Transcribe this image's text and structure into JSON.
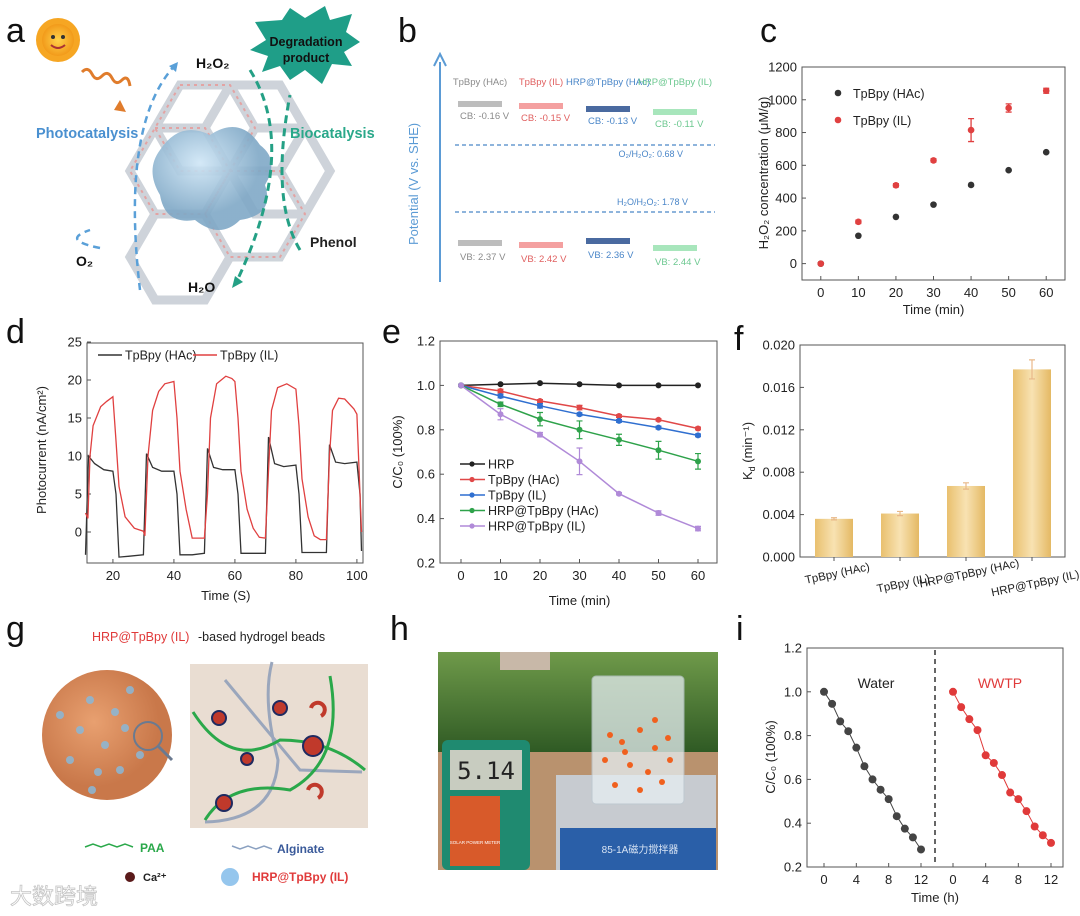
{
  "panels": {
    "a": {
      "label": "a",
      "sun": "sun-icon",
      "h2o2": "H₂O₂",
      "o2": "O₂",
      "h2o": "H₂O",
      "phenol": "Phenol",
      "photo": "Photocatalysis",
      "bio": "Biocatalysis",
      "burst_line1": "Degradation",
      "burst_line2": "product",
      "colors": {
        "photo": "#5aa0d8",
        "bio": "#24a085",
        "burst": "#1f9e88"
      }
    },
    "b": {
      "label": "b",
      "ylabel": "Potential (V vs. SHE)",
      "materials": [
        {
          "name": "TpBpy (HAc)",
          "cb": "CB: -0.16 V",
          "vb": "VB: 2.37 V",
          "color": "#8a8a8a",
          "bar": "#bdbdbd"
        },
        {
          "name": "TpBpy (IL)",
          "cb": "CB: -0.15 V",
          "vb": "VB: 2.42 V",
          "color": "#e06060",
          "bar": "#f4a0a0"
        },
        {
          "name": "HRP@TpBpy (HAc)",
          "cb": "CB: -0.13 V",
          "vb": "VB: 2.36 V",
          "color": "#4a86c8",
          "bar": "#4a6aa0"
        },
        {
          "name": "HRP@TpBpy (IL)",
          "cb": "CB: -0.11 V",
          "vb": "VB: 2.44 V",
          "color": "#6cc890",
          "bar": "#a8e6bc"
        }
      ],
      "o2_line": "O₂/H₂O₂: 0.68  V",
      "h2o_line": "H₂O/H₂O₂: 1.78  V"
    },
    "c": {
      "label": "c"
    },
    "d": {
      "label": "d"
    },
    "e": {
      "label": "e"
    },
    "f": {
      "label": "f"
    },
    "g": {
      "label": "g",
      "title_red": "HRP@TpBpy (IL)",
      "title_rest": "-based hydrogel beads",
      "paa": "PAA",
      "alginate": "Alginate",
      "ca": "Ca²⁺",
      "hrp": "HRP@TpBpy (IL)"
    },
    "h": {
      "label": "h",
      "meter_reading": "5.14",
      "meter_brand": "SOLAR POWER METER",
      "stirrer": "85-1A磁力搅拌器"
    },
    "i": {
      "label": "i"
    }
  },
  "watermark": "大数跨境",
  "chart_data": [
    {
      "id": "c",
      "type": "scatter",
      "title": "",
      "xlabel": "Time (min)",
      "ylabel": "H₂O₂ concentration (μM/g)",
      "xlim": [
        -5,
        65
      ],
      "ylim": [
        -100,
        1200
      ],
      "xticks": [
        0,
        10,
        20,
        30,
        40,
        50,
        60
      ],
      "yticks": [
        0,
        200,
        400,
        600,
        800,
        1000,
        1200
      ],
      "legend": "top-left",
      "x": [
        0,
        10,
        20,
        30,
        40,
        50,
        60
      ],
      "series": [
        {
          "name": "TpBpy (HAc)",
          "color": "#333333",
          "values": [
            0,
            170,
            285,
            360,
            480,
            570,
            680
          ]
        },
        {
          "name": "TpBpy (IL)",
          "color": "#e04040",
          "values": [
            0,
            255,
            478,
            630,
            815,
            950,
            1055
          ],
          "errors": [
            0,
            10,
            10,
            10,
            70,
            25,
            15
          ]
        }
      ]
    },
    {
      "id": "d",
      "type": "line",
      "xlabel": "Time (S)",
      "ylabel": "Photocurrent (nA/cm²)",
      "xlim": [
        11,
        102
      ],
      "ylim": [
        -4,
        25
      ],
      "xticks": [
        20,
        40,
        60,
        80,
        100
      ],
      "yticks": [
        0,
        5,
        10,
        15,
        20,
        25
      ],
      "legend": "top",
      "series": [
        {
          "name": "TpBpy (HAc)",
          "color": "#333333",
          "points": [
            [
              11,
              -3
            ],
            [
              12,
              10
            ],
            [
              14,
              9
            ],
            [
              17,
              8.2
            ],
            [
              20,
              8
            ],
            [
              21,
              5
            ],
            [
              22,
              -3.3
            ],
            [
              25,
              -3.2
            ],
            [
              30,
              -3
            ],
            [
              31,
              10.3
            ],
            [
              33,
              8.5
            ],
            [
              36,
              8
            ],
            [
              40,
              8
            ],
            [
              41,
              5
            ],
            [
              42,
              -3
            ],
            [
              46,
              -3
            ],
            [
              50,
              -2.8
            ],
            [
              51,
              11
            ],
            [
              53,
              8.5
            ],
            [
              56,
              8.2
            ],
            [
              60,
              8.2
            ],
            [
              61,
              5
            ],
            [
              62,
              -2.8
            ],
            [
              66,
              -2.8
            ],
            [
              70,
              -2.8
            ],
            [
              71,
              12.5
            ],
            [
              73,
              9
            ],
            [
              76,
              8.6
            ],
            [
              80,
              8.8
            ],
            [
              81,
              5
            ],
            [
              82,
              -2.7
            ],
            [
              90,
              -2.7
            ],
            [
              91,
              11.5
            ],
            [
              93,
              9.2
            ],
            [
              96,
              9
            ],
            [
              100,
              9.2
            ],
            [
              101,
              5
            ],
            [
              101.5,
              -2.5
            ]
          ]
        },
        {
          "name": "TpBpy (IL)",
          "color": "#e04040",
          "points": [
            [
              11,
              2.5
            ],
            [
              11.8,
              1.8
            ],
            [
              12.5,
              10
            ],
            [
              13.5,
              14
            ],
            [
              16,
              16.5
            ],
            [
              18,
              17.2
            ],
            [
              20,
              17.8
            ],
            [
              21,
              12
            ],
            [
              22,
              6
            ],
            [
              24,
              2
            ],
            [
              27,
              0.5
            ],
            [
              30,
              0.1
            ],
            [
              30.5,
              -0.5
            ],
            [
              31.5,
              10
            ],
            [
              33,
              16
            ],
            [
              35,
              18.5
            ],
            [
              37,
              19.5
            ],
            [
              40,
              19.8
            ],
            [
              41,
              15
            ],
            [
              42,
              8
            ],
            [
              44,
              3
            ],
            [
              46,
              -0.8
            ],
            [
              50,
              -0.8
            ],
            [
              51,
              5
            ],
            [
              52,
              15
            ],
            [
              54,
              19.5
            ],
            [
              57,
              20.5
            ],
            [
              59,
              20.2
            ],
            [
              60,
              19.8
            ],
            [
              61,
              15
            ],
            [
              62,
              8
            ],
            [
              64,
              3
            ],
            [
              66,
              0.5
            ],
            [
              68,
              -0.7
            ],
            [
              70,
              -0.8
            ],
            [
              71,
              8
            ],
            [
              72,
              16
            ],
            [
              74,
              19
            ],
            [
              77,
              19.5
            ],
            [
              80,
              18.8
            ],
            [
              81,
              14
            ],
            [
              82,
              7
            ],
            [
              84,
              2
            ],
            [
              86,
              -0.5
            ],
            [
              88,
              -1
            ],
            [
              90,
              -1
            ],
            [
              91,
              10
            ],
            [
              92,
              16
            ],
            [
              94,
              17.6
            ],
            [
              96,
              17.5
            ],
            [
              99,
              16.2
            ],
            [
              100,
              15.5
            ],
            [
              101,
              5
            ],
            [
              101.5,
              0
            ]
          ]
        }
      ]
    },
    {
      "id": "e",
      "type": "line",
      "xlabel": "Time (min)",
      "ylabel": "C/C₀ (100%)",
      "xlim": [
        -4,
        65
      ],
      "ylim": [
        0.2,
        1.2
      ],
      "xticks": [
        0,
        10,
        20,
        30,
        40,
        50,
        60
      ],
      "yticks": [
        0.2,
        0.4,
        0.6,
        0.8,
        1.0,
        1.2
      ],
      "legend": "bottom-left",
      "x": [
        0,
        10,
        20,
        30,
        40,
        50,
        60
      ],
      "series": [
        {
          "name": "HRP",
          "color": "#222222",
          "values": [
            1,
            1.005,
            1.01,
            1.005,
            1.0,
            1.0,
            1.0
          ]
        },
        {
          "name": "TpBpy (HAc)",
          "color": "#e04848",
          "values": [
            1,
            0.975,
            0.93,
            0.9,
            0.862,
            0.845,
            0.806
          ],
          "errors": [
            0,
            0.008,
            0.006,
            0.01,
            0.006,
            0.005,
            0.006
          ]
        },
        {
          "name": "TpBpy (IL)",
          "color": "#2f6fd0",
          "values": [
            1,
            0.952,
            0.908,
            0.87,
            0.84,
            0.81,
            0.775
          ],
          "errors": [
            0,
            0.008,
            0.01,
            0.006,
            0.006,
            0.006,
            0.006
          ]
        },
        {
          "name": "HRP@TpBpy (HAc)",
          "color": "#2ea24a",
          "values": [
            1,
            0.915,
            0.848,
            0.8,
            0.755,
            0.708,
            0.658
          ],
          "errors": [
            0,
            0.01,
            0.03,
            0.04,
            0.025,
            0.04,
            0.035
          ]
        },
        {
          "name": "HRP@TpBpy (IL)",
          "color": "#b08ad8",
          "values": [
            1,
            0.87,
            0.778,
            0.658,
            0.512,
            0.425,
            0.355
          ],
          "errors": [
            0,
            0.025,
            0.01,
            0.06,
            0.005,
            0.01,
            0.01
          ]
        }
      ]
    },
    {
      "id": "f",
      "type": "bar",
      "xlabel": "",
      "ylabel_main": "K",
      "ylabel_sub": "d",
      "ylabel_unit": " (min⁻¹)",
      "ylim": [
        0,
        0.02
      ],
      "yticks": [
        "0.000",
        "0.004",
        "0.008",
        "0.012",
        "0.016",
        "0.020"
      ],
      "categories": [
        "TpBpy (HAc)",
        "TpBpy (IL)",
        "HRP@TpBpy (HAc)",
        "HRP@TpBpy (IL)"
      ],
      "values": [
        0.0036,
        0.0041,
        0.0067,
        0.0177
      ],
      "errors": [
        0.0001,
        0.0002,
        0.0003,
        0.0009
      ],
      "color": "#f0cf8a"
    },
    {
      "id": "i",
      "type": "line",
      "xlabel": "Time (h)",
      "ylabel": "C/C₀ (100%)",
      "ylim": [
        0.2,
        1.2
      ],
      "xticks": [
        0,
        4,
        8,
        12
      ],
      "yticks": [
        0.2,
        0.4,
        0.6,
        0.8,
        1.0,
        1.2
      ],
      "x": [
        0,
        1,
        2,
        3,
        4,
        5,
        6,
        7,
        8,
        9,
        10,
        11,
        12
      ],
      "series": [
        {
          "name": "Water",
          "color": "#444444",
          "values": [
            1.0,
            0.945,
            0.865,
            0.82,
            0.745,
            0.66,
            0.6,
            0.553,
            0.51,
            0.432,
            0.375,
            0.335,
            0.28
          ]
        },
        {
          "name": "WWTP",
          "color": "#e03a3a",
          "values": [
            1.0,
            0.93,
            0.875,
            0.825,
            0.71,
            0.675,
            0.62,
            0.54,
            0.51,
            0.455,
            0.385,
            0.345,
            0.31
          ]
        }
      ]
    }
  ]
}
